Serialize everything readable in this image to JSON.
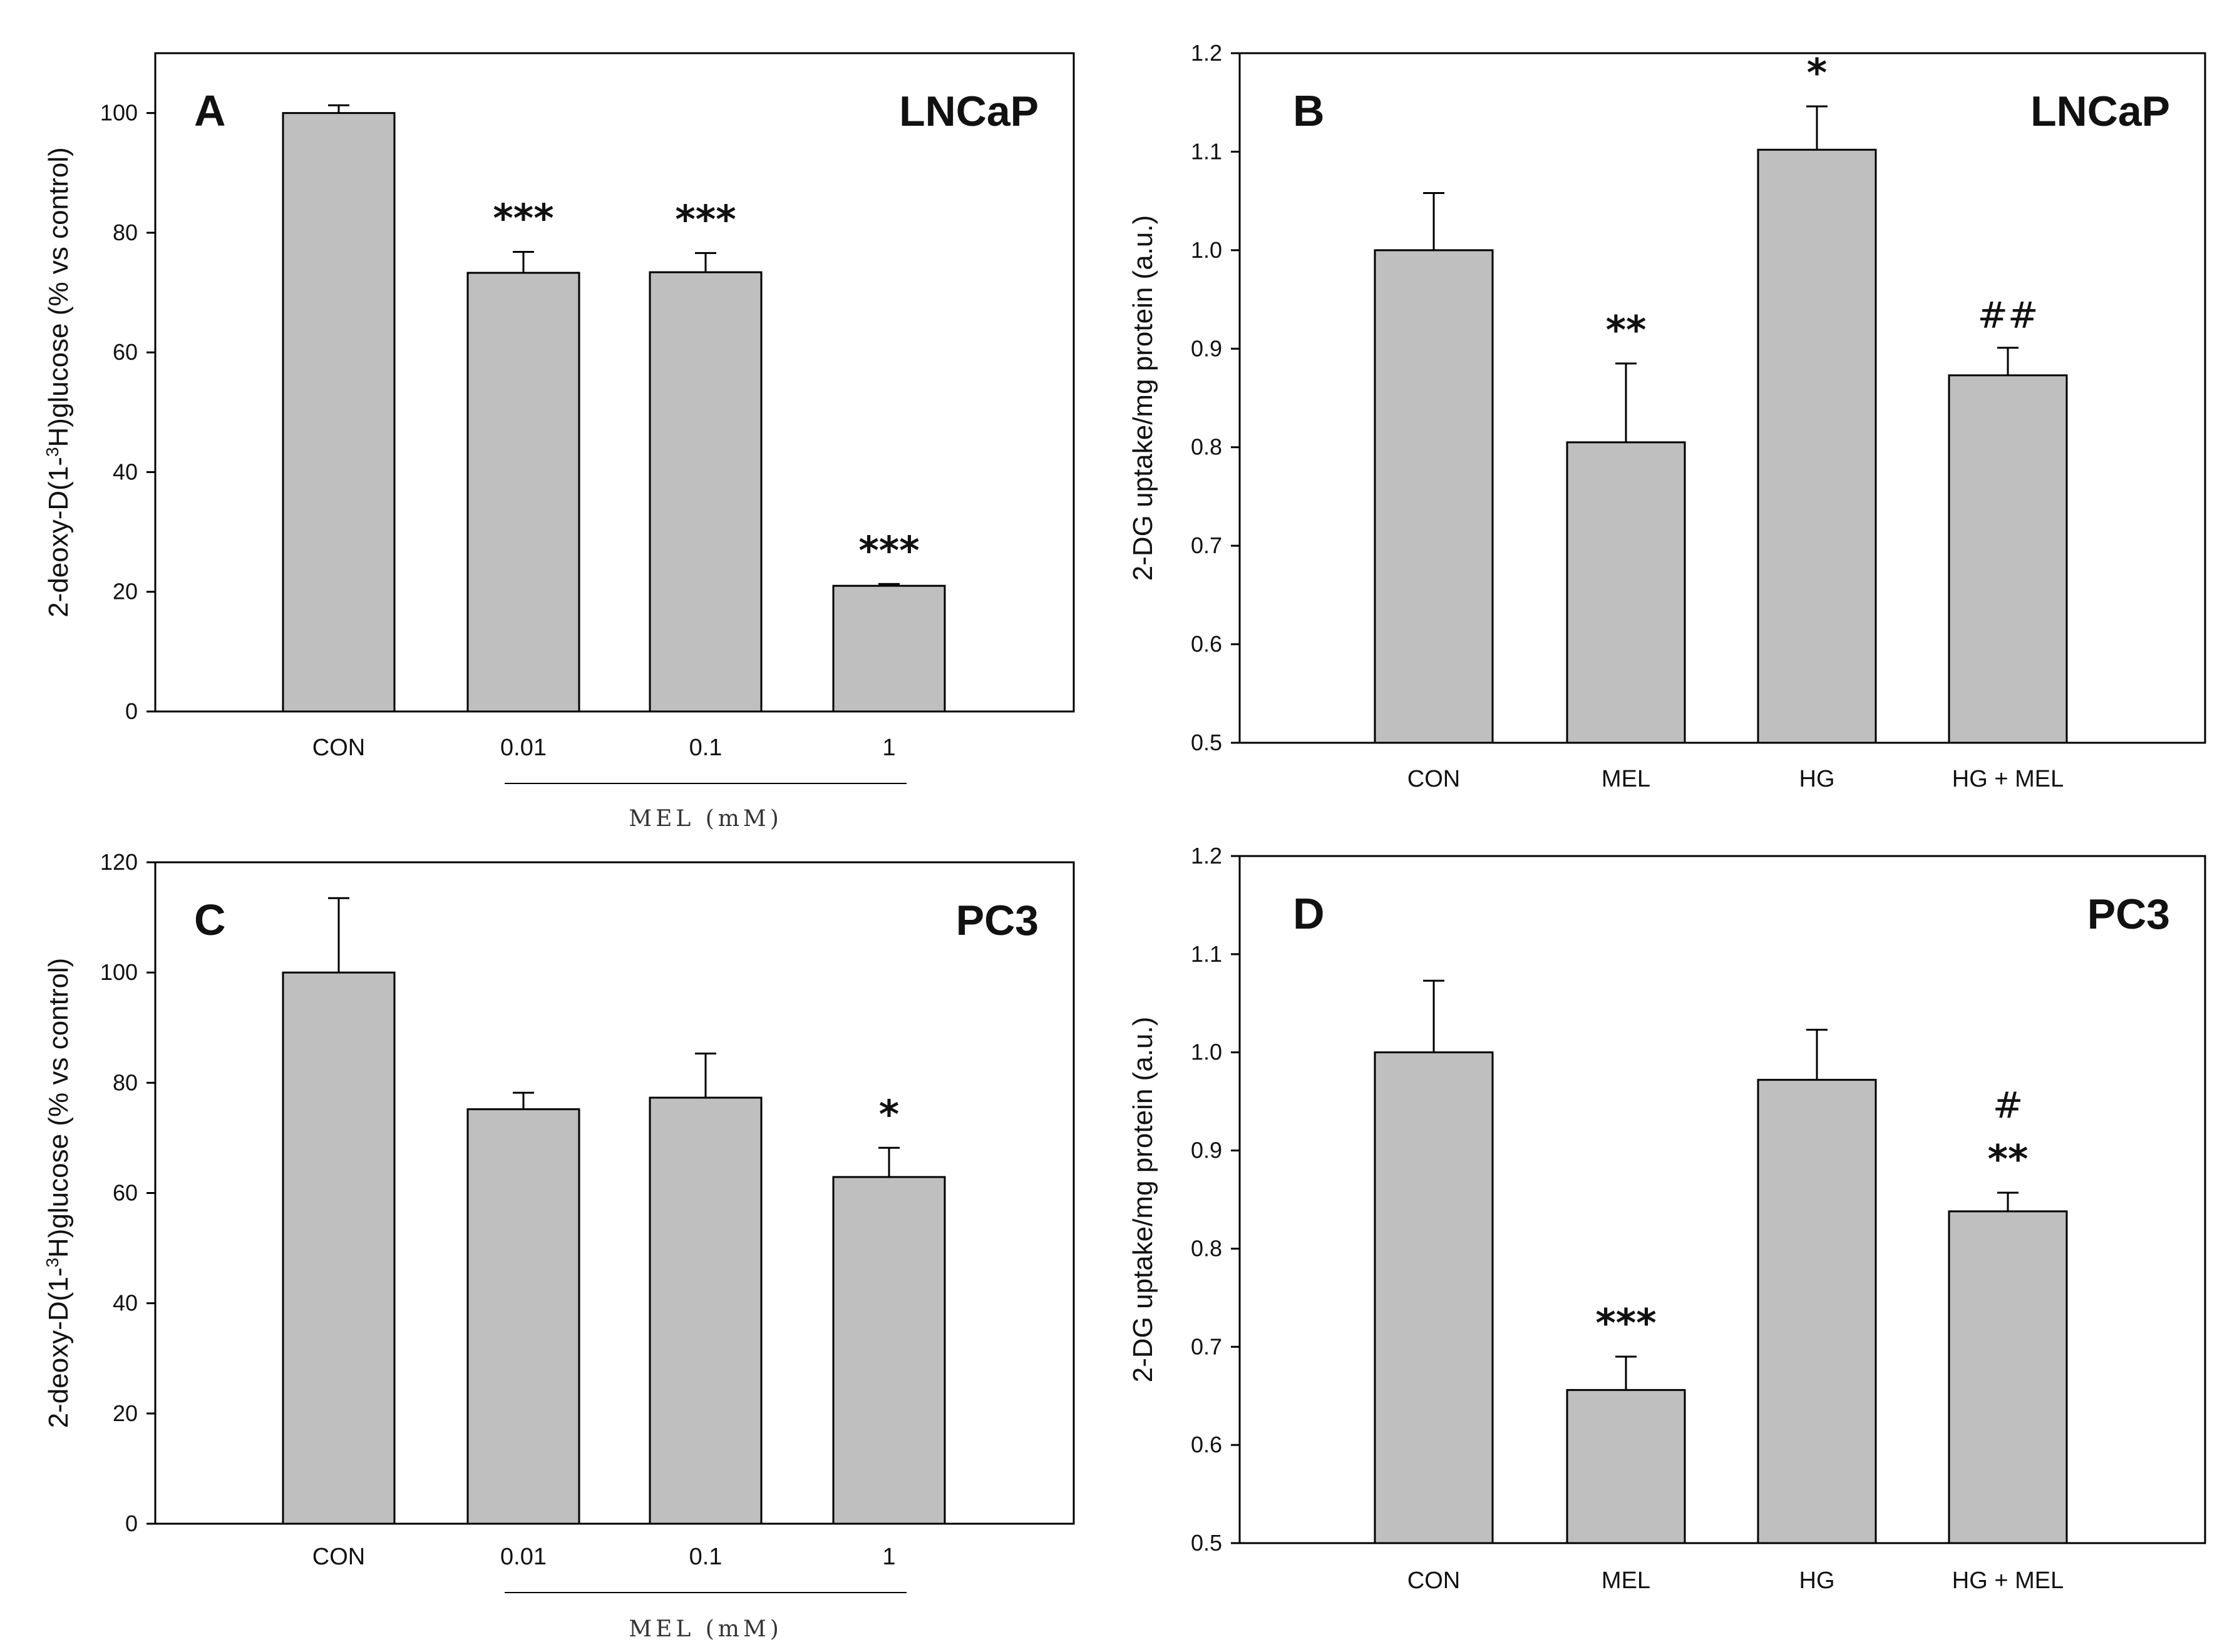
{
  "figure": {
    "colors": {
      "bar_fill": "#bfbfbf",
      "bar_stroke": "#000000",
      "axis": "#000000",
      "background": "#ffffff"
    }
  },
  "chart_data": [
    {
      "id": "A",
      "type": "bar",
      "panel_label": "A",
      "cell_line": "LNCaP",
      "ylabel_parts": [
        "2-deoxy-D(1-",
        "3",
        "H)glucose (% vs control)"
      ],
      "ylim": [
        0,
        110
      ],
      "yticks": [
        0,
        20,
        40,
        60,
        80,
        100
      ],
      "ytick_decimals": 0,
      "categories": [
        "CON",
        "0.01",
        "0.1",
        "1"
      ],
      "values": [
        100,
        73.3,
        73.4,
        21.0
      ],
      "errors": [
        1.3,
        3.5,
        3.2,
        0.3
      ],
      "significance": [
        [],
        [
          "***"
        ],
        [
          "***"
        ],
        [
          "***"
        ]
      ],
      "group_label": "MEL (mM)",
      "group_span": [
        "0.01",
        "1"
      ]
    },
    {
      "id": "B",
      "type": "bar",
      "panel_label": "B",
      "cell_line": "LNCaP",
      "ylabel_parts": [
        "2-DG uptake/mg protein (a.u.)"
      ],
      "ylim": [
        0.5,
        1.2
      ],
      "yticks": [
        0.5,
        0.6,
        0.7,
        0.8,
        0.9,
        1.0,
        1.1,
        1.2
      ],
      "ytick_decimals": 1,
      "categories": [
        "CON",
        "MEL",
        "HG",
        "HG + MEL"
      ],
      "values": [
        1.0,
        0.805,
        1.102,
        0.873
      ],
      "errors": [
        0.058,
        0.08,
        0.044,
        0.028
      ],
      "significance": [
        [],
        [
          "**"
        ],
        [
          "*"
        ],
        [
          "##"
        ]
      ]
    },
    {
      "id": "C",
      "type": "bar",
      "panel_label": "C",
      "cell_line": "PC3",
      "ylabel_parts": [
        "2-deoxy-D(1-",
        "3",
        "H)glucose (% vs control)"
      ],
      "ylim": [
        0,
        120
      ],
      "yticks": [
        0,
        20,
        40,
        60,
        80,
        100,
        120
      ],
      "ytick_decimals": 0,
      "categories": [
        "CON",
        "0.01",
        "0.1",
        "1"
      ],
      "values": [
        100,
        75.2,
        77.3,
        62.9
      ],
      "errors": [
        13.5,
        3.0,
        8.0,
        5.3
      ],
      "significance": [
        [],
        [],
        [],
        [
          "*"
        ]
      ],
      "group_label": "MEL (mM)",
      "group_span": [
        "0.01",
        "1"
      ]
    },
    {
      "id": "D",
      "type": "bar",
      "panel_label": "D",
      "cell_line": "PC3",
      "ylabel_parts": [
        "2-DG uptake/mg protein (a.u.)"
      ],
      "ylim": [
        0.5,
        1.2
      ],
      "yticks": [
        0.5,
        0.6,
        0.7,
        0.8,
        0.9,
        1.0,
        1.1,
        1.2
      ],
      "ytick_decimals": 1,
      "categories": [
        "CON",
        "MEL",
        "HG",
        "HG + MEL"
      ],
      "values": [
        1.0,
        0.656,
        0.972,
        0.838
      ],
      "errors": [
        0.073,
        0.034,
        0.051,
        0.019
      ],
      "significance": [
        [],
        [
          "***"
        ],
        [],
        [
          "#",
          "**"
        ]
      ]
    }
  ]
}
